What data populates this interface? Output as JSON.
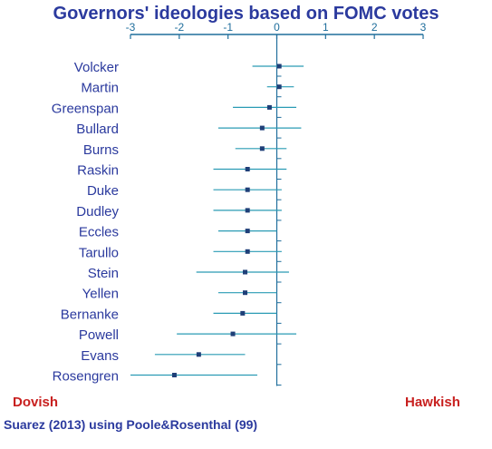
{
  "colors": {
    "title": "#2B3A9E",
    "axis": "#1F6E9C",
    "interval": "#2A9BB4",
    "point": "#1F3F78",
    "label": "#2B3A9E",
    "annotation": "#C8201F"
  },
  "annotations": {
    "left": "Dovish",
    "right": "Hawkish",
    "source": "Suarez (2013) using Poole&Rosenthal (99)"
  },
  "chart_data": {
    "type": "scatter",
    "title": "Governors' ideologies based on FOMC votes",
    "xlabel": "",
    "ylabel": "",
    "xlim": [
      -3,
      3
    ],
    "xticks": [
      "-3",
      "-2",
      "-1",
      "0",
      "1",
      "2",
      "3"
    ],
    "grid": false,
    "error_bars": true,
    "points": [
      {
        "name": "Volcker",
        "x": 0.05,
        "low": -0.5,
        "high": 0.55
      },
      {
        "name": "Martin",
        "x": 0.05,
        "low": -0.2,
        "high": 0.35
      },
      {
        "name": "Greenspan",
        "x": -0.15,
        "low": -0.9,
        "high": 0.4
      },
      {
        "name": "Bullard",
        "x": -0.3,
        "low": -1.2,
        "high": 0.5
      },
      {
        "name": "Burns",
        "x": -0.3,
        "low": -0.85,
        "high": 0.2
      },
      {
        "name": "Raskin",
        "x": -0.6,
        "low": -1.3,
        "high": 0.2
      },
      {
        "name": "Duke",
        "x": -0.6,
        "low": -1.3,
        "high": 0.1
      },
      {
        "name": "Dudley",
        "x": -0.6,
        "low": -1.3,
        "high": 0.1
      },
      {
        "name": "Eccles",
        "x": -0.6,
        "low": -1.2,
        "high": 0.0
      },
      {
        "name": "Tarullo",
        "x": -0.6,
        "low": -1.3,
        "high": 0.1
      },
      {
        "name": "Stein",
        "x": -0.65,
        "low": -1.65,
        "high": 0.25
      },
      {
        "name": "Yellen",
        "x": -0.65,
        "low": -1.2,
        "high": 0.0
      },
      {
        "name": "Bernanke",
        "x": -0.7,
        "low": -1.3,
        "high": 0.0
      },
      {
        "name": "Powell",
        "x": -0.9,
        "low": -2.05,
        "high": 0.4
      },
      {
        "name": "Evans",
        "x": -1.6,
        "low": -2.5,
        "high": -0.65
      },
      {
        "name": "Rosengren",
        "x": -2.1,
        "low": -3.0,
        "high": -0.4
      }
    ]
  }
}
